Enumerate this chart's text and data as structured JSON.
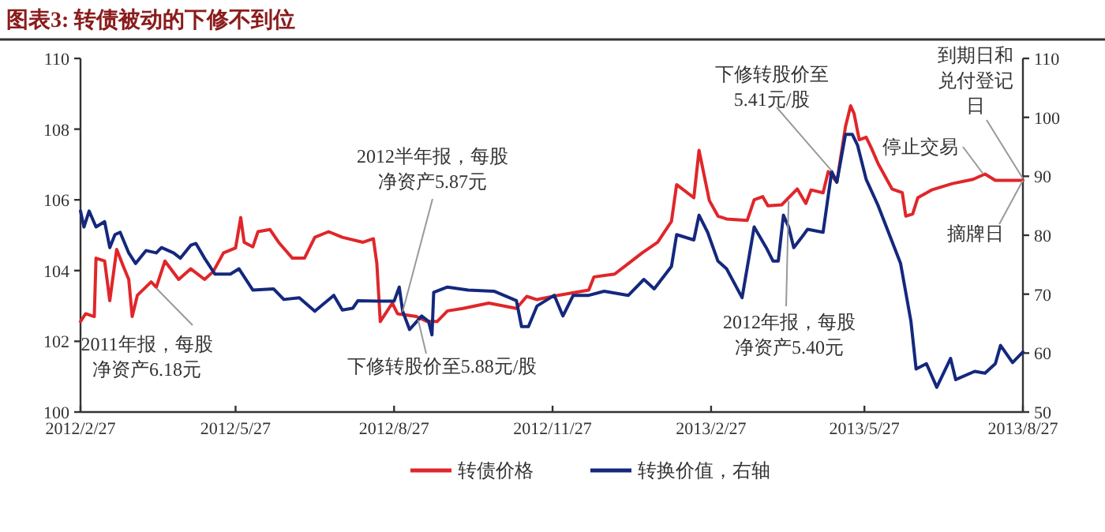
{
  "chart_data": {
    "type": "line",
    "title": "图表3: 转债被动的下修不到位",
    "xlim": [
      "2012-02-27",
      "2013-08-27"
    ],
    "xticks": [
      {
        "value": "2012-02-27",
        "label": "2012/2/27"
      },
      {
        "value": "2012-05-27",
        "label": "2012/5/27"
      },
      {
        "value": "2012-08-27",
        "label": "2012/8/27"
      },
      {
        "value": "2012-11-27",
        "label": "2012/11/27"
      },
      {
        "value": "2013-02-27",
        "label": "2013/2/27"
      },
      {
        "value": "2013-05-27",
        "label": "2013/5/27"
      },
      {
        "value": "2013-08-27",
        "label": "2013/8/27"
      }
    ],
    "ylim": [
      100,
      110
    ],
    "yticks": [
      100,
      102,
      104,
      106,
      108,
      110
    ],
    "y2lim": [
      50,
      110
    ],
    "y2ticks": [
      50,
      60,
      70,
      80,
      90,
      100,
      110
    ],
    "grid": false,
    "legend": "bottom",
    "marker": "none",
    "line_style": "solid",
    "series": [
      {
        "name": "转债价格",
        "color": "#e0262a",
        "x": [
          "2012-02-27",
          "2012-03-01",
          "2012-03-06",
          "2012-03-07",
          "2012-03-12",
          "2012-03-15",
          "2012-03-19",
          "2012-03-23",
          "2012-03-26",
          "2012-03-28",
          "2012-03-31",
          "2012-04-08",
          "2012-04-11",
          "2012-04-16",
          "2012-04-24",
          "2012-05-01",
          "2012-05-09",
          "2012-05-14",
          "2012-05-20",
          "2012-05-27",
          "2012-05-30",
          "2012-06-01",
          "2012-06-06",
          "2012-06-09",
          "2012-06-16",
          "2012-06-21",
          "2012-06-29",
          "2012-07-06",
          "2012-07-12",
          "2012-07-20",
          "2012-07-28",
          "2012-08-09",
          "2012-08-15",
          "2012-08-17",
          "2012-08-19",
          "2012-08-26",
          "2012-08-29",
          "2012-09-09",
          "2012-09-15",
          "2012-09-21",
          "2012-09-27",
          "2012-10-06",
          "2012-10-21",
          "2012-11-06",
          "2012-11-12",
          "2012-11-18",
          "2012-11-30",
          "2012-12-18",
          "2012-12-21",
          "2013-01-02",
          "2013-01-10",
          "2013-01-18",
          "2013-01-27",
          "2013-02-04",
          "2013-02-07",
          "2013-02-17",
          "2013-02-20",
          "2013-02-26",
          "2013-03-03",
          "2013-03-08",
          "2013-03-20",
          "2013-03-24",
          "2013-03-29",
          "2013-04-01",
          "2013-04-09",
          "2013-04-18",
          "2013-04-23",
          "2013-04-26",
          "2013-05-03",
          "2013-05-06",
          "2013-05-11",
          "2013-05-16",
          "2013-05-19",
          "2013-05-21",
          "2013-05-24",
          "2013-05-28",
          "2013-05-31",
          "2013-06-04",
          "2013-06-12",
          "2013-06-18",
          "2013-06-20",
          "2013-06-24",
          "2013-06-27",
          "2013-07-05",
          "2013-07-17",
          "2013-07-29",
          "2013-08-05",
          "2013-08-11",
          "2013-08-27"
        ],
        "values": [
          102.56,
          102.78,
          102.7,
          104.35,
          104.27,
          103.15,
          104.6,
          104.1,
          103.75,
          102.7,
          103.3,
          103.68,
          103.53,
          104.27,
          103.75,
          104.05,
          103.75,
          103.97,
          104.5,
          104.64,
          105.5,
          104.8,
          104.67,
          105.1,
          105.16,
          104.8,
          104.35,
          104.35,
          104.94,
          105.1,
          104.94,
          104.8,
          104.9,
          104.2,
          102.56,
          103.08,
          102.78,
          102.7,
          102.56,
          102.56,
          102.86,
          102.93,
          103.08,
          102.93,
          103.27,
          103.18,
          103.3,
          103.45,
          103.82,
          103.9,
          104.2,
          104.5,
          104.8,
          105.39,
          106.43,
          106.06,
          107.4,
          105.98,
          105.54,
          105.46,
          105.42,
          106.0,
          106.09,
          105.83,
          105.86,
          106.31,
          105.9,
          106.28,
          106.2,
          106.8,
          106.5,
          108.07,
          108.66,
          108.44,
          107.7,
          107.77,
          107.47,
          107.02,
          106.31,
          106.2,
          105.54,
          105.6,
          106.06,
          106.28,
          106.46,
          106.58,
          106.73,
          106.55,
          106.55
        ]
      },
      {
        "name": "转换价值，右轴",
        "color": "#14287d",
        "axis": "y2",
        "x": [
          "2012-02-27",
          "2012-02-29",
          "2012-03-03",
          "2012-03-07",
          "2012-03-12",
          "2012-03-15",
          "2012-03-18",
          "2012-03-21",
          "2012-03-26",
          "2012-03-30",
          "2012-04-05",
          "2012-04-11",
          "2012-04-14",
          "2012-04-21",
          "2012-04-25",
          "2012-05-01",
          "2012-05-04",
          "2012-05-09",
          "2012-05-15",
          "2012-05-24",
          "2012-05-29",
          "2012-06-06",
          "2012-06-18",
          "2012-06-24",
          "2012-07-03",
          "2012-07-12",
          "2012-07-23",
          "2012-07-28",
          "2012-08-03",
          "2012-08-06",
          "2012-08-18",
          "2012-08-27",
          "2012-08-30",
          "2012-09-01",
          "2012-09-05",
          "2012-09-12",
          "2012-09-16",
          "2012-09-18",
          "2012-09-19",
          "2012-09-27",
          "2012-10-09",
          "2012-10-24",
          "2012-11-06",
          "2012-11-09",
          "2012-11-13",
          "2012-11-18",
          "2012-11-28",
          "2012-12-03",
          "2012-12-09",
          "2012-12-18",
          "2012-12-27",
          "2013-01-10",
          "2013-01-19",
          "2013-01-25",
          "2013-02-04",
          "2013-02-07",
          "2013-02-17",
          "2013-02-20",
          "2013-02-25",
          "2013-03-03",
          "2013-03-08",
          "2013-03-17",
          "2013-03-24",
          "2013-03-31",
          "2013-04-04",
          "2013-04-07",
          "2013-04-10",
          "2013-04-13",
          "2013-04-16",
          "2013-04-21",
          "2013-04-24",
          "2013-05-03",
          "2013-05-08",
          "2013-05-11",
          "2013-05-16",
          "2013-05-20",
          "2013-05-23",
          "2013-05-28",
          "2013-06-04",
          "2013-06-17",
          "2013-06-23",
          "2013-06-26",
          "2013-07-02",
          "2013-07-08",
          "2013-07-16",
          "2013-07-19",
          "2013-07-30",
          "2013-08-05",
          "2013-08-11",
          "2013-08-14",
          "2013-08-21",
          "2013-08-27"
        ],
        "values": [
          84.1,
          81.4,
          84.1,
          81.4,
          82.3,
          77.9,
          80.1,
          80.5,
          77.0,
          75.2,
          77.4,
          77.0,
          77.9,
          77.0,
          76.1,
          78.3,
          78.6,
          76.1,
          73.4,
          73.4,
          74.3,
          70.7,
          70.9,
          69.1,
          69.4,
          67.1,
          69.8,
          67.3,
          67.6,
          68.9,
          68.8,
          68.8,
          71.2,
          67.1,
          64.0,
          66.3,
          65.4,
          63.1,
          70.3,
          71.2,
          70.7,
          70.5,
          68.9,
          64.5,
          64.5,
          68.0,
          69.8,
          66.3,
          69.8,
          69.8,
          70.5,
          69.8,
          72.5,
          70.9,
          74.7,
          80.1,
          79.2,
          83.4,
          80.5,
          75.6,
          74.3,
          69.4,
          81.4,
          77.9,
          75.6,
          75.6,
          83.4,
          81.4,
          77.9,
          79.8,
          81.0,
          80.5,
          90.8,
          89.0,
          97.1,
          97.1,
          95.3,
          89.5,
          85.0,
          75.2,
          65.4,
          57.3,
          58.2,
          54.2,
          59.1,
          55.5,
          56.9,
          56.6,
          58.2,
          61.3,
          58.4,
          60.2
        ]
      }
    ],
    "annotations": [
      {
        "text": "2011年报，每股净资产6.18元",
        "x": "2012-04-11",
        "y": 103.5
      },
      {
        "text": "2012半年报，每股净资产5.87元",
        "x": "2012-09-01",
        "y": 102.84
      },
      {
        "text": "下修转股价至5.88元/股",
        "x": "2012-09-10",
        "y": 102.6
      },
      {
        "text": "下修转股价至5.41元/股",
        "x": "2013-05-08",
        "y": 106.82
      },
      {
        "text": "2012年报，每股净资产5.40元",
        "x": "2013-04-13",
        "y": 105.97
      },
      {
        "text": "停止交易",
        "x": "2013-08-04",
        "y": 106.73
      },
      {
        "text": "到期日和兑付登记日",
        "x": "2013-08-27",
        "y": 106.6
      },
      {
        "text": "摘牌日",
        "x": "2013-08-27",
        "y": 106.55
      }
    ]
  }
}
